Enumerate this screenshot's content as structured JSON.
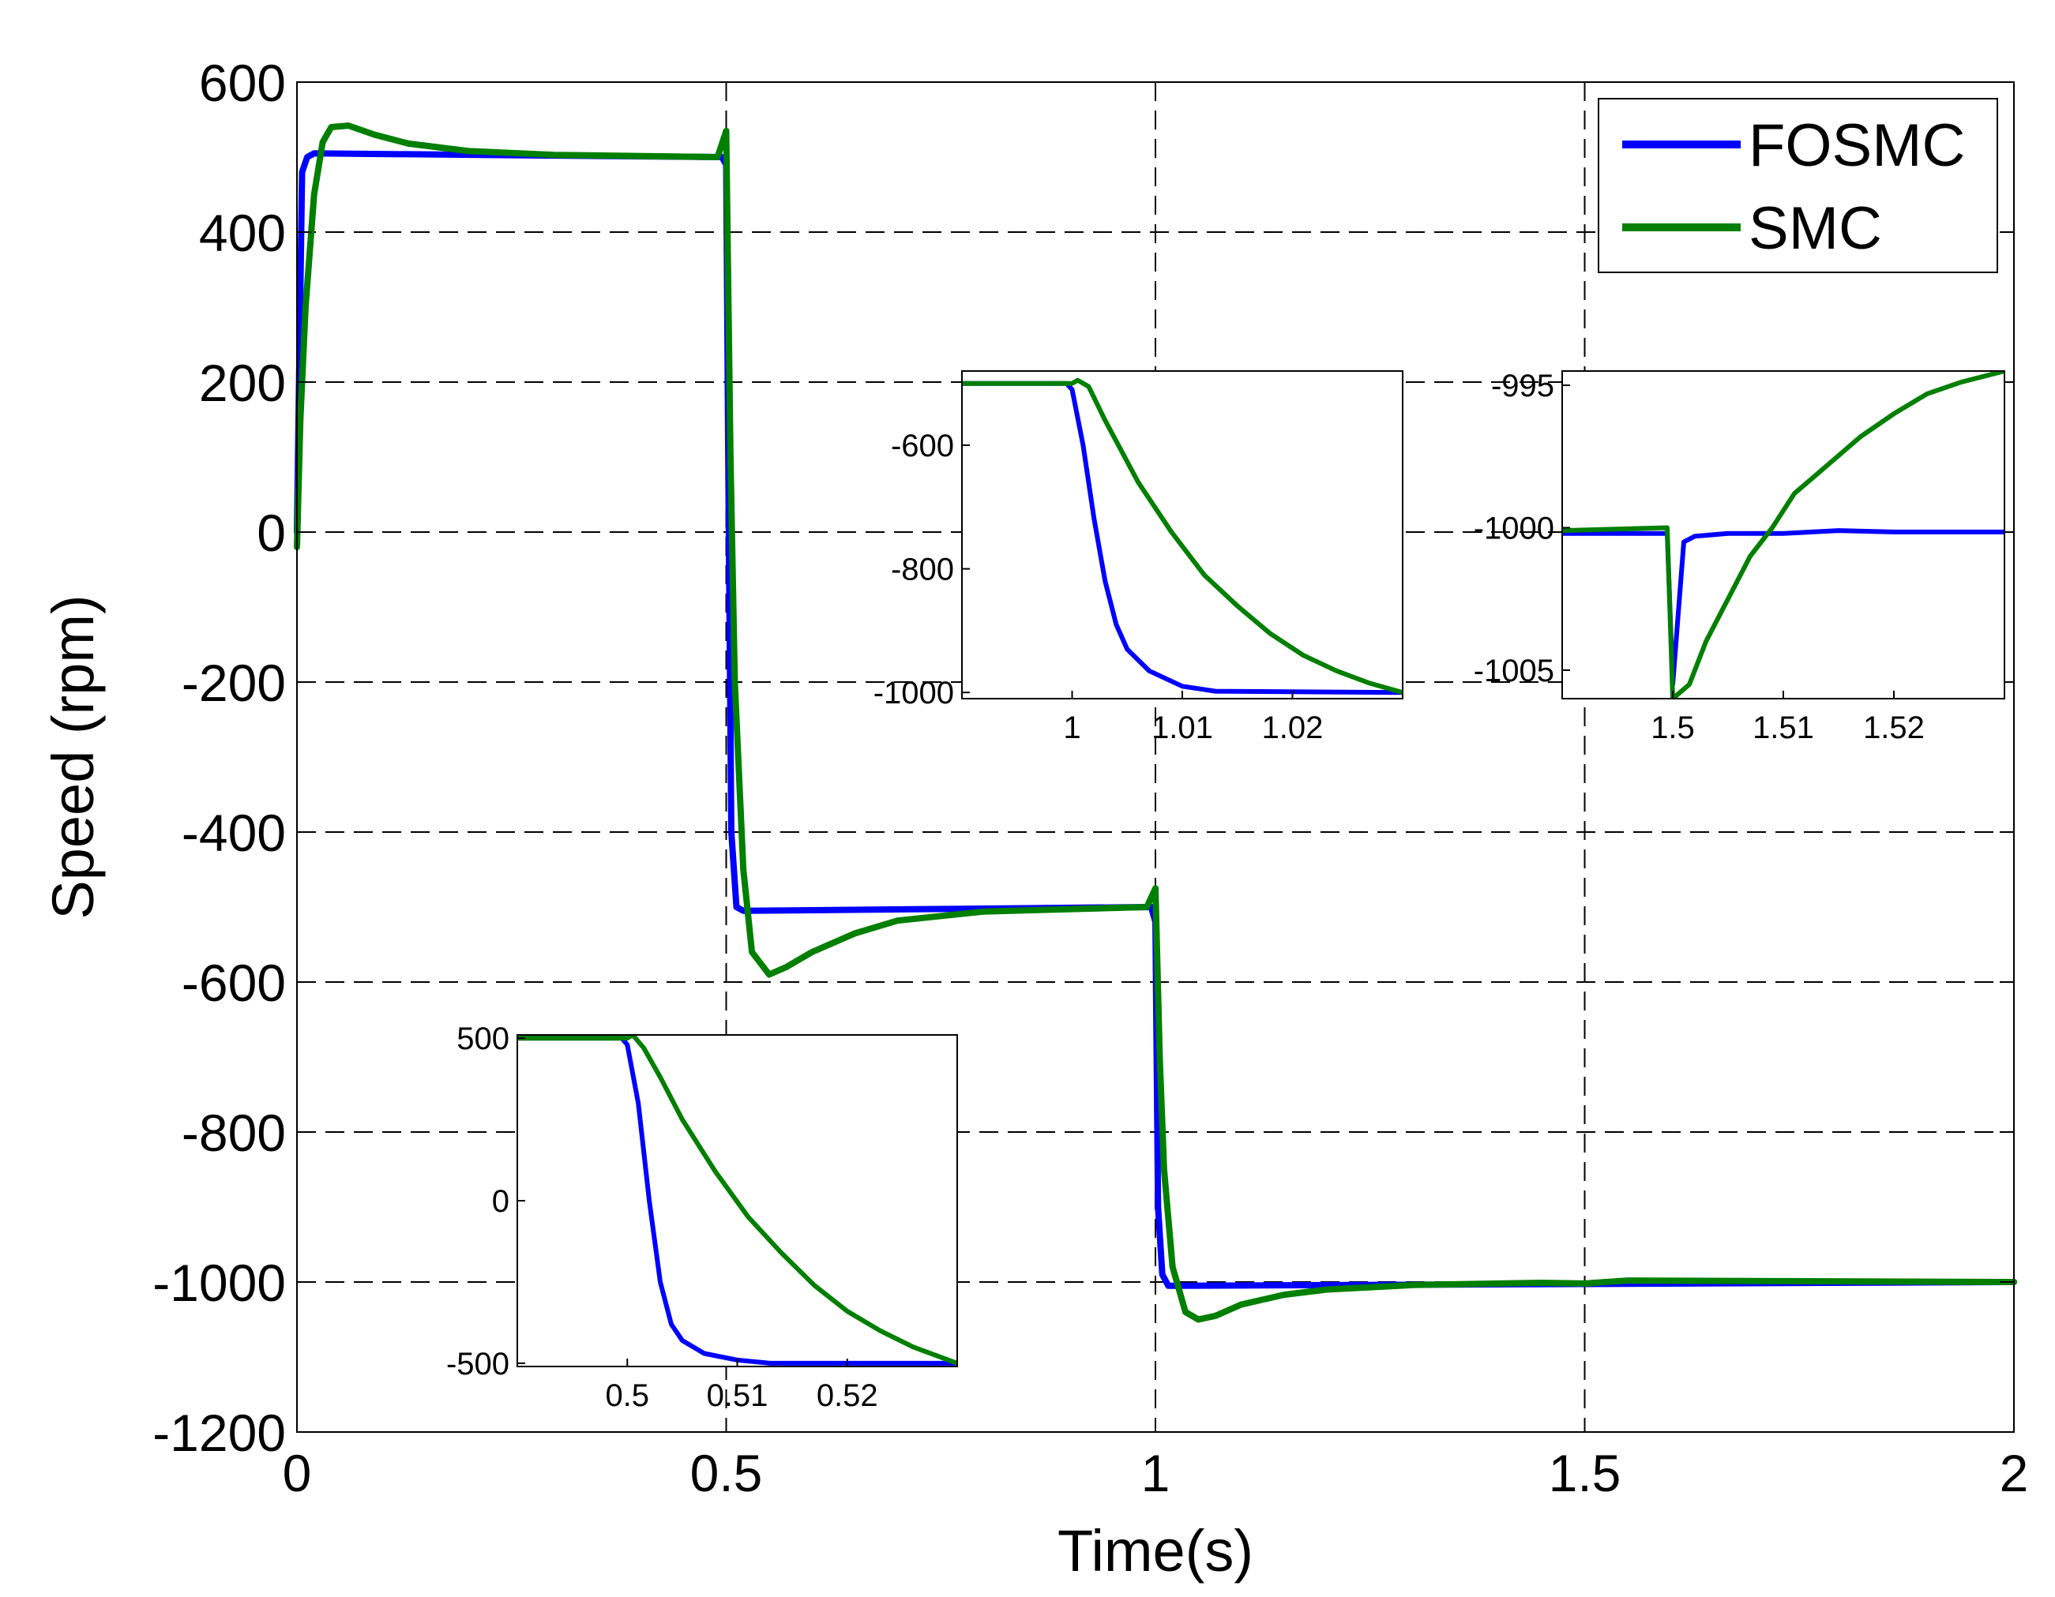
{
  "chart_data": {
    "type": "line",
    "xlabel": "Time(s)",
    "ylabel": "Speed (rpm)",
    "xlim": [
      0,
      2
    ],
    "ylim": [
      -1200,
      600
    ],
    "xticks": [
      0,
      0.5,
      1,
      1.5,
      2
    ],
    "xtick_labels": [
      "0",
      "0.5",
      "1",
      "1.5",
      "2"
    ],
    "yticks": [
      600,
      400,
      200,
      0,
      -200,
      -400,
      -600,
      -800,
      -1000,
      -1200
    ],
    "ytick_labels": [
      "600",
      "400",
      "200",
      "0",
      "-200",
      "-400",
      "-600",
      "-800",
      "-1000",
      "-1200"
    ],
    "grid": true,
    "legend": {
      "position": "top-right",
      "entries": [
        {
          "name": "FOSMC",
          "color": "#0000ff"
        },
        {
          "name": "SMC",
          "color": "#007f00"
        }
      ]
    },
    "series": [
      {
        "name": "FOSMC",
        "color": "#0000ff",
        "points": [
          [
            0,
            0
          ],
          [
            0.003,
            250
          ],
          [
            0.006,
            480
          ],
          [
            0.012,
            500
          ],
          [
            0.02,
            505
          ],
          [
            0.495,
            500
          ],
          [
            0.5,
            490
          ],
          [
            0.503,
            0
          ],
          [
            0.506,
            -400
          ],
          [
            0.512,
            -500
          ],
          [
            0.52,
            -505
          ],
          [
            0.995,
            -500
          ],
          [
            1.0,
            -520
          ],
          [
            1.003,
            -900
          ],
          [
            1.008,
            -990
          ],
          [
            1.015,
            -1005
          ],
          [
            2,
            -1000
          ]
        ]
      },
      {
        "name": "SMC",
        "color": "#007f00",
        "points": [
          [
            0,
            -20
          ],
          [
            0.004,
            150
          ],
          [
            0.01,
            300
          ],
          [
            0.02,
            450
          ],
          [
            0.03,
            520
          ],
          [
            0.04,
            540
          ],
          [
            0.06,
            542
          ],
          [
            0.09,
            530
          ],
          [
            0.13,
            518
          ],
          [
            0.2,
            508
          ],
          [
            0.3,
            503
          ],
          [
            0.49,
            500
          ],
          [
            0.5,
            535
          ],
          [
            0.505,
            100
          ],
          [
            0.51,
            -200
          ],
          [
            0.52,
            -450
          ],
          [
            0.53,
            -560
          ],
          [
            0.55,
            -590
          ],
          [
            0.57,
            -580
          ],
          [
            0.6,
            -560
          ],
          [
            0.65,
            -535
          ],
          [
            0.7,
            -518
          ],
          [
            0.8,
            -506
          ],
          [
            0.99,
            -500
          ],
          [
            1.0,
            -475
          ],
          [
            1.005,
            -700
          ],
          [
            1.01,
            -850
          ],
          [
            1.02,
            -980
          ],
          [
            1.035,
            -1040
          ],
          [
            1.05,
            -1050
          ],
          [
            1.07,
            -1045
          ],
          [
            1.1,
            -1030
          ],
          [
            1.15,
            -1017
          ],
          [
            1.2,
            -1010
          ],
          [
            1.3,
            -1004
          ],
          [
            1.45,
            -1001
          ],
          [
            1.5,
            -1002
          ],
          [
            1.55,
            -998
          ],
          [
            2,
            -1000
          ]
        ]
      }
    ],
    "insets": [
      {
        "name": "inset-0.5s",
        "xlim": [
          0.49,
          0.53
        ],
        "ylim": [
          -510,
          510
        ],
        "xticks": [
          0.5,
          0.51,
          0.52
        ],
        "xtick_labels": [
          "0.5",
          "0.51",
          "0.52"
        ],
        "yticks": [
          500,
          0,
          -500
        ],
        "ytick_labels": [
          "500",
          "0",
          "-500"
        ],
        "series": [
          {
            "name": "FOSMC",
            "color": "#0000ff",
            "points": [
              [
                0.49,
                500
              ],
              [
                0.4995,
                500
              ],
              [
                0.5,
                480
              ],
              [
                0.501,
                300
              ],
              [
                0.502,
                0
              ],
              [
                0.503,
                -250
              ],
              [
                0.504,
                -380
              ],
              [
                0.505,
                -430
              ],
              [
                0.507,
                -470
              ],
              [
                0.51,
                -490
              ],
              [
                0.513,
                -500
              ],
              [
                0.53,
                -500
              ]
            ]
          },
          {
            "name": "SMC",
            "color": "#007f00",
            "points": [
              [
                0.49,
                500
              ],
              [
                0.5,
                500
              ],
              [
                0.5005,
                510
              ],
              [
                0.5015,
                470
              ],
              [
                0.503,
                380
              ],
              [
                0.505,
                250
              ],
              [
                0.508,
                90
              ],
              [
                0.511,
                -50
              ],
              [
                0.514,
                -160
              ],
              [
                0.517,
                -260
              ],
              [
                0.52,
                -340
              ],
              [
                0.523,
                -400
              ],
              [
                0.526,
                -450
              ],
              [
                0.53,
                -500
              ]
            ]
          }
        ]
      },
      {
        "name": "inset-1.0s",
        "xlim": [
          0.99,
          1.03
        ],
        "ylim": [
          -1010,
          -480
        ],
        "xticks": [
          1.0,
          1.01,
          1.02
        ],
        "xtick_labels": [
          "1",
          "1.01",
          "1.02"
        ],
        "yticks": [
          -600,
          -800,
          -1000
        ],
        "ytick_labels": [
          "-600",
          "-800",
          "-1000"
        ],
        "series": [
          {
            "name": "FOSMC",
            "color": "#0000ff",
            "points": [
              [
                0.99,
                -500
              ],
              [
                0.9995,
                -500
              ],
              [
                1.0,
                -510
              ],
              [
                1.001,
                -600
              ],
              [
                1.002,
                -720
              ],
              [
                1.003,
                -820
              ],
              [
                1.004,
                -890
              ],
              [
                1.005,
                -930
              ],
              [
                1.007,
                -965
              ],
              [
                1.01,
                -990
              ],
              [
                1.013,
                -998
              ],
              [
                1.03,
                -1000
              ]
            ]
          },
          {
            "name": "SMC",
            "color": "#007f00",
            "points": [
              [
                0.99,
                -500
              ],
              [
                1.0,
                -500
              ],
              [
                1.0005,
                -495
              ],
              [
                1.0015,
                -505
              ],
              [
                1.003,
                -560
              ],
              [
                1.006,
                -660
              ],
              [
                1.009,
                -740
              ],
              [
                1.012,
                -810
              ],
              [
                1.015,
                -860
              ],
              [
                1.018,
                -905
              ],
              [
                1.021,
                -940
              ],
              [
                1.024,
                -965
              ],
              [
                1.027,
                -985
              ],
              [
                1.03,
                -1000
              ]
            ]
          }
        ]
      },
      {
        "name": "inset-1.5s",
        "xlim": [
          1.49,
          1.53
        ],
        "ylim": [
          -1006,
          -994.5
        ],
        "xticks": [
          1.5,
          1.51,
          1.52
        ],
        "xtick_labels": [
          "1.5",
          "1.51",
          "1.52"
        ],
        "yticks": [
          -995,
          -1000,
          -1005
        ],
        "ytick_labels": [
          "-995",
          "-1000",
          "-1005"
        ],
        "series": [
          {
            "name": "FOSMC",
            "color": "#0000ff",
            "points": [
              [
                1.49,
                -1000.2
              ],
              [
                1.4995,
                -1000.2
              ],
              [
                1.5,
                -1005.5
              ],
              [
                1.5005,
                -1003
              ],
              [
                1.501,
                -1000.5
              ],
              [
                1.502,
                -1000.3
              ],
              [
                1.505,
                -1000.2
              ],
              [
                1.51,
                -1000.2
              ],
              [
                1.515,
                -1000.1
              ],
              [
                1.52,
                -1000.15
              ],
              [
                1.53,
                -1000.15
              ]
            ]
          },
          {
            "name": "SMC",
            "color": "#007f00",
            "points": [
              [
                1.49,
                -1000.1
              ],
              [
                1.4995,
                -1000.0
              ],
              [
                1.5,
                -1006
              ],
              [
                1.5015,
                -1005.5
              ],
              [
                1.503,
                -1004
              ],
              [
                1.505,
                -1002.5
              ],
              [
                1.507,
                -1001
              ],
              [
                1.509,
                -1000
              ],
              [
                1.511,
                -998.8
              ],
              [
                1.514,
                -997.8
              ],
              [
                1.517,
                -996.8
              ],
              [
                1.52,
                -996
              ],
              [
                1.523,
                -995.3
              ],
              [
                1.526,
                -994.9
              ],
              [
                1.53,
                -994.5
              ]
            ]
          }
        ]
      }
    ]
  }
}
